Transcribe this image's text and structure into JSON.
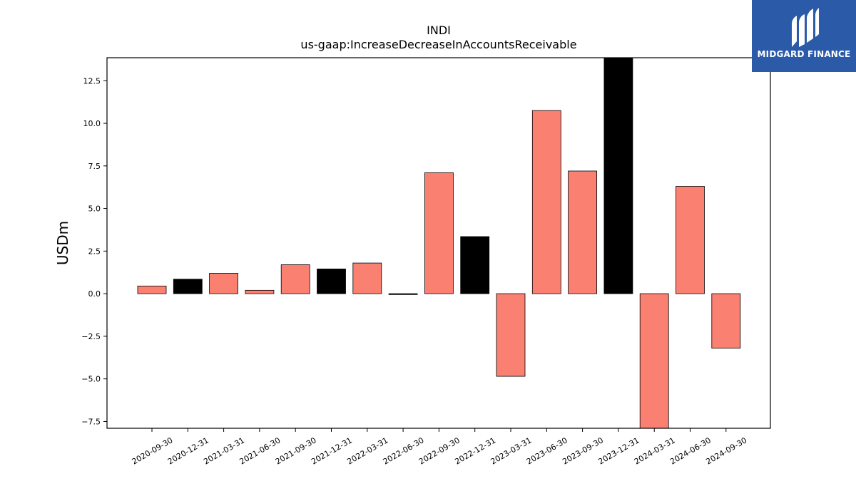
{
  "logo": {
    "text": "MIDGARD FINANCE"
  },
  "chart_data": {
    "type": "bar",
    "title": "INDI",
    "subtitle": "us-gaap:IncreaseDecreaseInAccountsReceivable",
    "xlabel": "",
    "ylabel": "USDm",
    "ylim": [
      -7.9,
      13.85
    ],
    "yticks": [
      -7.5,
      -5.0,
      -2.5,
      0.0,
      2.5,
      5.0,
      7.5,
      10.0,
      12.5
    ],
    "ytick_labels": [
      "−7.5",
      "−5.0",
      "−2.5",
      "0.0",
      "2.5",
      "5.0",
      "7.5",
      "10.0",
      "12.5"
    ],
    "grid": false,
    "categories": [
      "2020-09-30",
      "2020-12-31",
      "2021-03-31",
      "2021-06-30",
      "2021-09-30",
      "2021-12-31",
      "2022-03-31",
      "2022-06-30",
      "2022-09-30",
      "2022-12-31",
      "2023-03-31",
      "2023-06-30",
      "2023-09-30",
      "2023-12-31",
      "2024-03-31",
      "2024-06-30",
      "2024-09-30"
    ],
    "values": [
      0.45,
      0.85,
      1.2,
      0.2,
      1.7,
      1.45,
      1.8,
      -0.05,
      7.1,
      3.35,
      -4.85,
      10.75,
      7.2,
      13.85,
      -7.9,
      6.3,
      -3.2
    ],
    "colors": [
      "#fa8072",
      "#000000",
      "#fa8072",
      "#fa8072",
      "#fa8072",
      "#000000",
      "#fa8072",
      "#000000",
      "#fa8072",
      "#000000",
      "#fa8072",
      "#fa8072",
      "#fa8072",
      "#000000",
      "#fa8072",
      "#fa8072",
      "#fa8072"
    ]
  }
}
